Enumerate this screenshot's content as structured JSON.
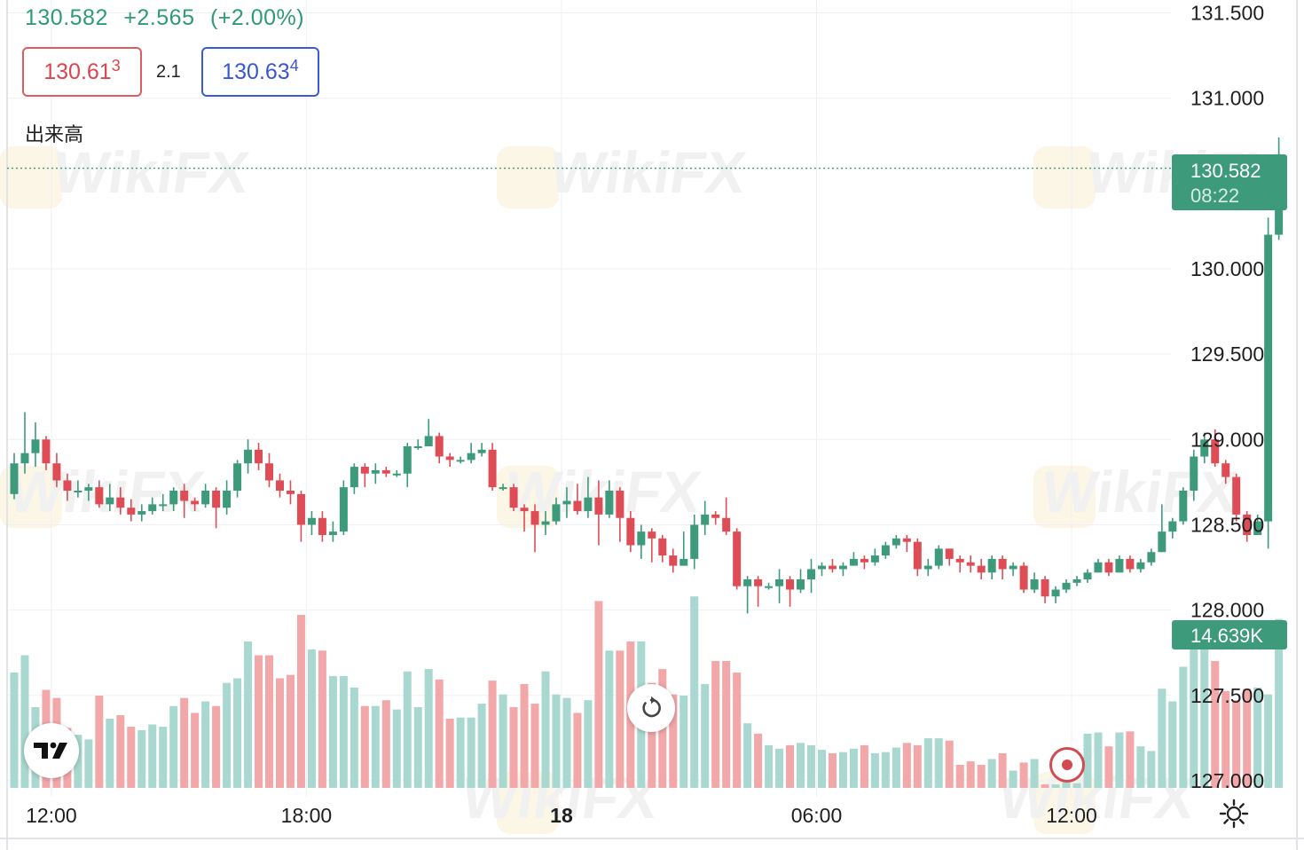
{
  "header": {
    "last_price": "130.582",
    "change": "+2.565",
    "change_pct": "(+2.00%)"
  },
  "quote": {
    "bid_main": "130.61",
    "bid_sup": "3",
    "spread": "2.1",
    "ask_main": "130.63",
    "ask_sup": "4"
  },
  "volume_label": "出来高",
  "price_badge": {
    "price": "130.582",
    "countdown": "08:22"
  },
  "volume_badge": "14.639K",
  "colors": {
    "up": "#3d9a7b",
    "down": "#de4d55",
    "up_volume": "#a8d8cf",
    "down_volume": "#f2a7a9",
    "grid": "#eef0f3"
  },
  "icons": {
    "logo": "tradingview-logo-icon",
    "reset": "reset-icon",
    "record": "record-icon",
    "settings": "settings-icon"
  },
  "chart_data": {
    "type": "candlestick",
    "y_ticks": [
      "131.500",
      "131.000",
      "130.000",
      "129.500",
      "129.000",
      "128.500",
      "128.000",
      "127.500",
      "127.000"
    ],
    "y_tick_values": [
      131.5,
      131.0,
      130.0,
      129.5,
      129.0,
      128.5,
      128.0,
      127.5,
      127.0
    ],
    "x_ticks": [
      "12:00",
      "18:00",
      "18",
      "06:00",
      "12:00"
    ],
    "x_tick_bold": [
      false,
      false,
      true,
      false,
      false
    ],
    "x_tick_index": [
      3.5,
      27.5,
      51.5,
      75.5,
      99.5
    ],
    "ylim": [
      126.95,
      131.57
    ],
    "volume_max": 20000,
    "grid": true,
    "candles": [
      [
        128.68,
        128.86,
        128.92,
        128.65,
        10000
      ],
      [
        128.86,
        128.92,
        129.16,
        128.8,
        11500
      ],
      [
        128.92,
        129.0,
        129.1,
        128.84,
        7000
      ],
      [
        129.0,
        128.86,
        129.02,
        128.82,
        8500
      ],
      [
        128.86,
        128.76,
        128.92,
        128.72,
        7800
      ],
      [
        128.76,
        128.7,
        128.8,
        128.64,
        5200
      ],
      [
        128.7,
        128.7,
        128.76,
        128.66,
        4600
      ],
      [
        128.7,
        128.72,
        128.74,
        128.64,
        4200
      ],
      [
        128.72,
        128.62,
        128.76,
        128.6,
        8000
      ],
      [
        128.62,
        128.66,
        128.74,
        128.58,
        6000
      ],
      [
        128.66,
        128.6,
        128.72,
        128.56,
        6300
      ],
      [
        128.6,
        128.56,
        128.65,
        128.52,
        5300
      ],
      [
        128.56,
        128.58,
        128.62,
        128.52,
        5000
      ],
      [
        128.58,
        128.62,
        128.66,
        128.56,
        5500
      ],
      [
        128.62,
        128.62,
        128.68,
        128.58,
        5300
      ],
      [
        128.62,
        128.7,
        128.72,
        128.58,
        7100
      ],
      [
        128.7,
        128.64,
        128.74,
        128.54,
        7800
      ],
      [
        128.64,
        128.62,
        128.66,
        128.58,
        6500
      ],
      [
        128.62,
        128.7,
        128.74,
        128.6,
        7500
      ],
      [
        128.7,
        128.6,
        128.72,
        128.48,
        7100
      ],
      [
        128.6,
        128.7,
        128.76,
        128.56,
        9100
      ],
      [
        128.7,
        128.86,
        128.88,
        128.66,
        9500
      ],
      [
        128.86,
        128.94,
        129.0,
        128.8,
        12700
      ],
      [
        128.94,
        128.86,
        128.98,
        128.82,
        11500
      ],
      [
        128.86,
        128.76,
        128.92,
        128.72,
        11500
      ],
      [
        128.76,
        128.7,
        128.8,
        128.66,
        9500
      ],
      [
        128.7,
        128.68,
        128.76,
        128.62,
        9800
      ],
      [
        128.68,
        128.5,
        128.7,
        128.4,
        15000
      ],
      [
        128.5,
        128.54,
        128.58,
        128.44,
        12000
      ],
      [
        128.54,
        128.44,
        128.58,
        128.4,
        11900
      ],
      [
        128.44,
        128.46,
        128.52,
        128.4,
        9700
      ],
      [
        128.46,
        128.72,
        128.76,
        128.44,
        9700
      ],
      [
        128.72,
        128.84,
        128.86,
        128.68,
        8700
      ],
      [
        128.84,
        128.8,
        128.86,
        128.72,
        7100
      ],
      [
        128.8,
        128.82,
        128.86,
        128.74,
        7100
      ],
      [
        128.82,
        128.8,
        128.84,
        128.78,
        7600
      ],
      [
        128.8,
        128.8,
        128.82,
        128.78,
        6800
      ],
      [
        128.8,
        128.96,
        128.98,
        128.72,
        10100
      ],
      [
        128.96,
        128.96,
        129.0,
        128.94,
        7000
      ],
      [
        128.96,
        129.02,
        129.12,
        128.98,
        10300
      ],
      [
        129.02,
        128.9,
        129.04,
        128.86,
        9400
      ],
      [
        128.9,
        128.88,
        128.92,
        128.84,
        6000
      ],
      [
        128.88,
        128.88,
        128.9,
        128.86,
        6100
      ],
      [
        128.88,
        128.92,
        128.98,
        128.86,
        6100
      ],
      [
        128.92,
        128.94,
        128.98,
        128.9,
        7300
      ],
      [
        128.94,
        128.72,
        128.98,
        128.7,
        9300
      ],
      [
        128.72,
        128.72,
        128.74,
        128.7,
        8100
      ],
      [
        128.72,
        128.6,
        128.74,
        128.58,
        7000
      ],
      [
        128.6,
        128.58,
        128.62,
        128.46,
        9000
      ],
      [
        128.58,
        128.5,
        128.62,
        128.34,
        7300
      ],
      [
        128.5,
        128.52,
        128.58,
        128.44,
        10100
      ],
      [
        128.52,
        128.62,
        128.66,
        128.5,
        8100
      ],
      [
        128.62,
        128.64,
        128.72,
        128.54,
        7800
      ],
      [
        128.64,
        128.58,
        128.74,
        128.56,
        6500
      ],
      [
        128.58,
        128.66,
        128.78,
        128.54,
        7600
      ],
      [
        128.66,
        128.56,
        128.76,
        128.38,
        16200
      ],
      [
        128.56,
        128.7,
        128.76,
        128.54,
        11900
      ],
      [
        128.7,
        128.54,
        128.72,
        128.4,
        11900
      ],
      [
        128.54,
        128.38,
        128.58,
        128.34,
        12700
      ],
      [
        128.38,
        128.46,
        128.5,
        128.3,
        12700
      ],
      [
        128.46,
        128.42,
        128.48,
        128.28,
        9100
      ],
      [
        128.42,
        128.32,
        128.44,
        128.28,
        10300
      ],
      [
        128.32,
        128.26,
        128.36,
        128.22,
        8100
      ],
      [
        128.26,
        128.3,
        128.46,
        128.26,
        8000
      ],
      [
        128.3,
        128.5,
        128.56,
        128.24,
        16600
      ],
      [
        128.5,
        128.56,
        128.64,
        128.44,
        9000
      ],
      [
        128.56,
        128.54,
        128.58,
        128.5,
        11000
      ],
      [
        128.54,
        128.46,
        128.66,
        128.44,
        11000
      ],
      [
        128.46,
        128.14,
        128.48,
        128.12,
        10000
      ],
      [
        128.14,
        128.18,
        128.2,
        127.98,
        5600
      ],
      [
        128.18,
        128.14,
        128.2,
        128.02,
        4700
      ],
      [
        128.14,
        128.14,
        128.16,
        128.12,
        3700
      ],
      [
        128.14,
        128.18,
        128.24,
        128.04,
        3400
      ],
      [
        128.18,
        128.12,
        128.2,
        128.02,
        3700
      ],
      [
        128.12,
        128.18,
        128.24,
        128.1,
        3900
      ],
      [
        128.18,
        128.24,
        128.3,
        128.1,
        3700
      ],
      [
        128.24,
        128.26,
        128.28,
        128.2,
        3300
      ],
      [
        128.26,
        128.24,
        128.3,
        128.22,
        3000
      ],
      [
        128.24,
        128.26,
        128.28,
        128.2,
        3100
      ],
      [
        128.26,
        128.3,
        128.34,
        128.26,
        3400
      ],
      [
        128.3,
        128.28,
        128.32,
        128.24,
        3700
      ],
      [
        128.28,
        128.32,
        128.36,
        128.26,
        3000
      ],
      [
        128.32,
        128.38,
        128.4,
        128.3,
        3100
      ],
      [
        128.38,
        128.42,
        128.44,
        128.36,
        3500
      ],
      [
        128.42,
        128.4,
        128.44,
        128.34,
        3900
      ],
      [
        128.4,
        128.24,
        128.42,
        128.2,
        3700
      ],
      [
        128.24,
        128.26,
        128.3,
        128.2,
        4300
      ],
      [
        128.26,
        128.36,
        128.38,
        128.24,
        4300
      ],
      [
        128.36,
        128.3,
        128.36,
        128.26,
        4100
      ],
      [
        128.3,
        128.28,
        128.32,
        128.22,
        2000
      ],
      [
        128.28,
        128.26,
        128.32,
        128.22,
        2300
      ],
      [
        128.26,
        128.22,
        128.3,
        128.18,
        2000
      ],
      [
        128.22,
        128.3,
        128.32,
        128.18,
        2500
      ],
      [
        128.3,
        128.24,
        128.32,
        128.18,
        3000
      ],
      [
        128.24,
        128.26,
        128.28,
        128.2,
        1500
      ],
      [
        128.26,
        128.12,
        128.28,
        128.1,
        2200
      ],
      [
        128.12,
        128.18,
        128.22,
        128.1,
        2500
      ],
      [
        128.18,
        128.08,
        128.2,
        128.04,
        300
      ],
      [
        128.08,
        128.12,
        128.14,
        128.04,
        300
      ],
      [
        128.12,
        128.16,
        128.18,
        128.1,
        500
      ],
      [
        128.16,
        128.18,
        128.2,
        128.14,
        400
      ],
      [
        128.18,
        128.22,
        128.24,
        128.16,
        4700
      ],
      [
        128.22,
        128.28,
        128.3,
        128.22,
        4800
      ],
      [
        128.28,
        128.22,
        128.3,
        128.2,
        3600
      ],
      [
        128.22,
        128.3,
        128.32,
        128.22,
        4800
      ],
      [
        128.3,
        128.24,
        128.32,
        128.22,
        4900
      ],
      [
        128.24,
        128.28,
        128.3,
        128.22,
        3600
      ],
      [
        128.28,
        128.34,
        128.36,
        128.26,
        3200
      ],
      [
        128.34,
        128.46,
        128.62,
        128.34,
        8600
      ],
      [
        128.46,
        128.52,
        128.54,
        128.42,
        7500
      ],
      [
        128.52,
        128.7,
        128.72,
        128.5,
        10500
      ],
      [
        128.7,
        128.9,
        128.94,
        128.64,
        12400
      ],
      [
        128.9,
        129.0,
        129.04,
        128.86,
        14300
      ],
      [
        129.0,
        128.86,
        129.06,
        128.84,
        11000
      ],
      [
        128.86,
        128.78,
        128.88,
        128.74,
        8400
      ],
      [
        128.78,
        128.56,
        128.8,
        128.52,
        7600
      ],
      [
        128.56,
        128.44,
        128.58,
        128.4,
        8600
      ],
      [
        128.44,
        128.52,
        128.56,
        128.44,
        8700
      ],
      [
        128.52,
        130.2,
        130.3,
        128.36,
        8100
      ],
      [
        130.2,
        130.59,
        130.77,
        130.17,
        14639
      ]
    ]
  }
}
